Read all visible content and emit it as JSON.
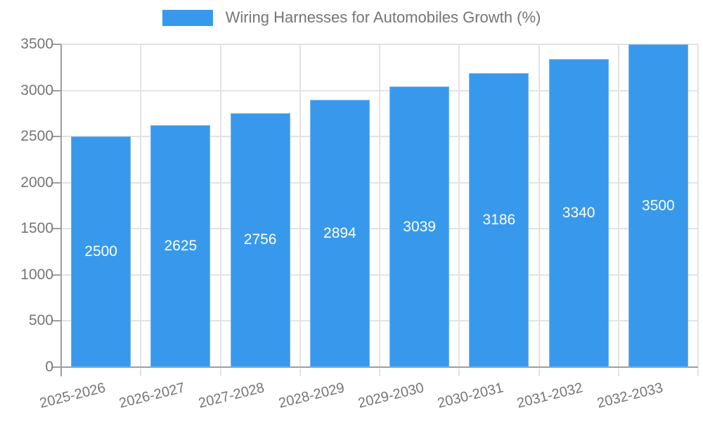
{
  "chart_data": {
    "type": "bar",
    "title": "Wiring Harnesses for Automobiles Growth (%)",
    "categories": [
      "2025-2026",
      "2026-2027",
      "2027-2028",
      "2028-2029",
      "2029-2030",
      "2030-2031",
      "2031-2032",
      "2032-2033"
    ],
    "values": [
      2500,
      2625,
      2756,
      2894,
      3039,
      3186,
      3340,
      3500
    ],
    "xlabel": "",
    "ylabel": "",
    "ylim": [
      0,
      3500
    ],
    "yticks": [
      0,
      500,
      1000,
      1500,
      2000,
      2500,
      3000,
      3500
    ],
    "grid": true,
    "legend_position": "top-center",
    "value_label_position": "inside-center",
    "colors": {
      "bar": "#3899ec",
      "grid": "#e3e3e3",
      "axis": "#9e9e9e",
      "text": "#757575",
      "value_text": "#ffffff",
      "background": "#ffffff"
    }
  }
}
